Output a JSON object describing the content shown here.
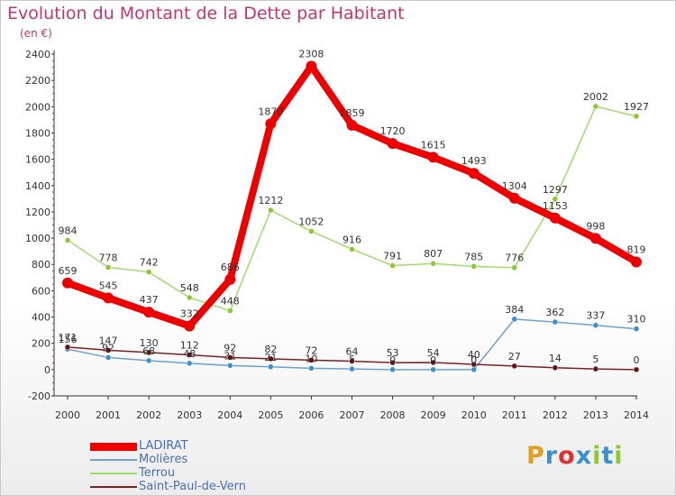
{
  "header": {
    "title": "Evolution du Montant de la Dette par Habitant",
    "subtitle": "(en €)"
  },
  "logo": {
    "text": "Proxiti",
    "colors": [
      "#e0a020",
      "#3a8fd0",
      "#e03030",
      "#3a8fd0",
      "#8cc830",
      "#3a8fd0",
      "#8cc830"
    ]
  },
  "chart_data": {
    "type": "line",
    "title": "Evolution du Montant de la Dette par Habitant",
    "subtitle": "(en €)",
    "xlabel": "",
    "ylabel": "",
    "ylim": [
      -200,
      2400
    ],
    "y_ticks": [
      -200,
      0,
      200,
      400,
      600,
      800,
      1000,
      1200,
      1400,
      1600,
      1800,
      2000,
      2200,
      2400
    ],
    "grid": false,
    "legend_position": "bottom-left",
    "categories": [
      "2000",
      "2001",
      "2002",
      "2003",
      "2004",
      "2005",
      "2006",
      "2007",
      "2008",
      "2009",
      "2010",
      "2011",
      "2012",
      "2013",
      "2014"
    ],
    "series": [
      {
        "name": "LADIRAT",
        "color": "#ee0000",
        "marker": "#ee0000",
        "values": [
          659,
          545,
          437,
          332,
          686,
          1870,
          2308,
          1859,
          1720,
          1615,
          1493,
          1304,
          1153,
          998,
          819
        ]
      },
      {
        "name": "Molières",
        "color": "#6fa0d0",
        "marker": "#3a8fd0",
        "values": [
          156,
          92,
          68,
          48,
          31,
          21,
          10,
          5,
          0,
          0,
          0,
          384,
          362,
          337,
          310
        ]
      },
      {
        "name": "Terrou",
        "color": "#9fdc6c",
        "marker": "#8cc830",
        "values": [
          984,
          778,
          742,
          548,
          448,
          1212,
          1052,
          916,
          791,
          807,
          785,
          776,
          1297,
          2002,
          1927
        ]
      },
      {
        "name": "Saint-Paul-de-Vern",
        "color": "#7a2020",
        "marker": "#6a1010",
        "values": [
          171,
          147,
          130,
          112,
          92,
          82,
          72,
          64,
          53,
          54,
          40,
          27,
          14,
          5,
          0
        ]
      }
    ]
  }
}
